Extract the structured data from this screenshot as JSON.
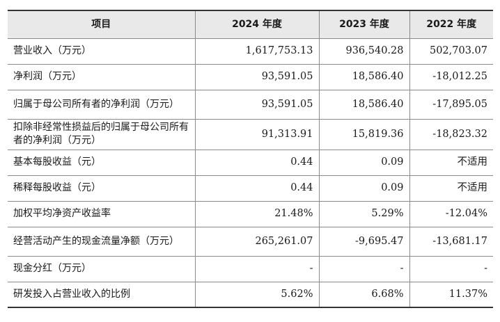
{
  "table": {
    "headers": [
      "项目",
      "2024 年度",
      "2023 年度",
      "2022 年度"
    ],
    "rows": [
      {
        "label": "营业收入（万元）",
        "v2024": "1,617,753.13",
        "v2023": "936,540.28",
        "v2022": "502,703.07"
      },
      {
        "label": "净利润（万元）",
        "v2024": "93,591.05",
        "v2023": "18,586.40",
        "v2022": "-18,012.25"
      },
      {
        "label": "归属于母公司所有者的净利润（万元）",
        "v2024": "93,591.05",
        "v2023": "18,586.40",
        "v2022": "-17,895.05"
      },
      {
        "label": "扣除非经常性损益后的归属于母公司所有者的净利润（万元）",
        "v2024": "91,313.91",
        "v2023": "15,819.36",
        "v2022": "-18,823.32"
      },
      {
        "label": "基本每股收益（元）",
        "v2024": "0.44",
        "v2023": "0.09",
        "v2022": "不适用"
      },
      {
        "label": "稀释每股收益（元）",
        "v2024": "0.44",
        "v2023": "0.09",
        "v2022": "不适用"
      },
      {
        "label": "加权平均净资产收益率",
        "v2024": "21.48%",
        "v2023": "5.29%",
        "v2022": "-12.04%"
      },
      {
        "label": "经营活动产生的现金流量净额（万元）",
        "v2024": "265,261.07",
        "v2023": "-9,695.47",
        "v2022": "-13,681.17"
      },
      {
        "label": "现金分红（万元）",
        "v2024": "-",
        "v2023": "-",
        "v2022": "-"
      },
      {
        "label": "研发投入占营业收入的比例",
        "v2024": "5.62%",
        "v2023": "6.68%",
        "v2022": "11.37%"
      }
    ]
  }
}
